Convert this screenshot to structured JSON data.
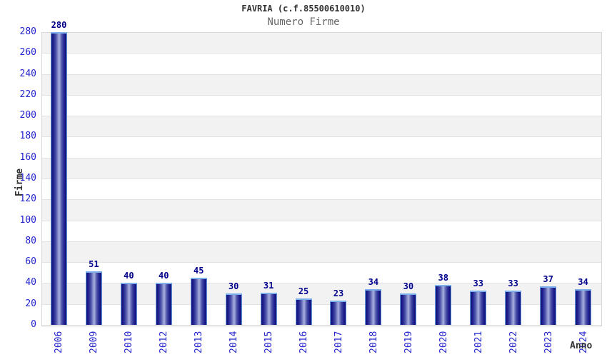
{
  "chart_data": {
    "type": "bar",
    "title": "FAVRIA (c.f.85500610010)",
    "subtitle": "Numero Firme",
    "xlabel": "Anno",
    "ylabel": "Firme",
    "categories": [
      "2006",
      "2009",
      "2010",
      "2012",
      "2013",
      "2014",
      "2015",
      "2016",
      "2017",
      "2018",
      "2019",
      "2020",
      "2021",
      "2022",
      "2023",
      "2024"
    ],
    "values": [
      280,
      51,
      40,
      40,
      45,
      30,
      31,
      25,
      23,
      34,
      30,
      38,
      33,
      33,
      37,
      34
    ],
    "ylim": [
      0,
      280
    ],
    "ytick_step": 20,
    "yticks": [
      0,
      20,
      40,
      60,
      80,
      100,
      120,
      140,
      160,
      180,
      200,
      220,
      240,
      260,
      280
    ],
    "grid": "alternating-horizontal-bands",
    "legend": "none",
    "colors": {
      "tick_label": "#2222cc",
      "value_label": "#00008b",
      "bar_dark": "#12127a",
      "bar_light": "#a9b0de",
      "bar_outline": "#6b9fe0",
      "band_gray": "#f2f2f2",
      "band_white": "#ffffff",
      "title_color": "#333333",
      "subtitle_color": "#666666",
      "axis_label_color": "#333333",
      "plot_border": "#d8d8d8"
    }
  }
}
